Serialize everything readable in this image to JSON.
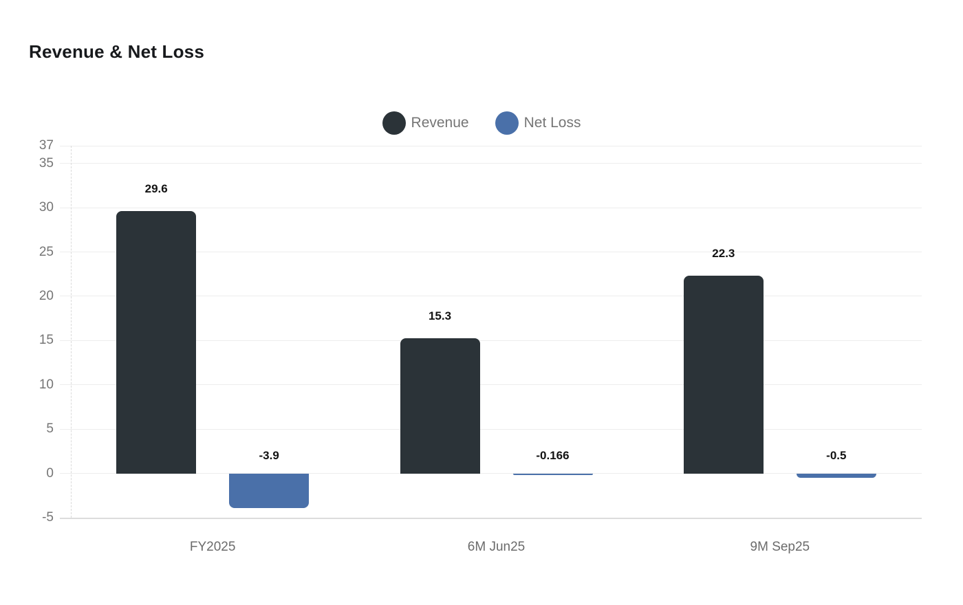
{
  "title": "Revenue & Net Loss",
  "legend": {
    "items": [
      {
        "label": "Revenue",
        "color": "#2b3338"
      },
      {
        "label": "Net Loss",
        "color": "#4a70a9"
      }
    ]
  },
  "colors": {
    "revenue": "#2b3338",
    "net_loss": "#4a70a9",
    "gridline": "#ededed",
    "axis_line": "#dcdcdc",
    "tick_text": "#757575",
    "value_text": "#121212"
  },
  "chart_data": {
    "type": "bar",
    "title": "Revenue & Net Loss",
    "categories": [
      "FY2025",
      "6M Jun25",
      "9M Sep25"
    ],
    "series": [
      {
        "name": "Revenue",
        "color": "#2b3338",
        "values": [
          29.6,
          15.3,
          22.3
        ],
        "labels": [
          "29.6",
          "15.3",
          "22.3"
        ]
      },
      {
        "name": "Net Loss",
        "color": "#4a70a9",
        "values": [
          -3.9,
          -0.166,
          -0.5
        ],
        "labels": [
          "-3.9",
          "-0.166",
          "-0.5"
        ]
      }
    ],
    "yticks": [
      37,
      35,
      30,
      25,
      20,
      15,
      10,
      5,
      0,
      -5
    ],
    "ylim": [
      -5,
      37
    ],
    "grid": true,
    "legend_position": "top"
  }
}
